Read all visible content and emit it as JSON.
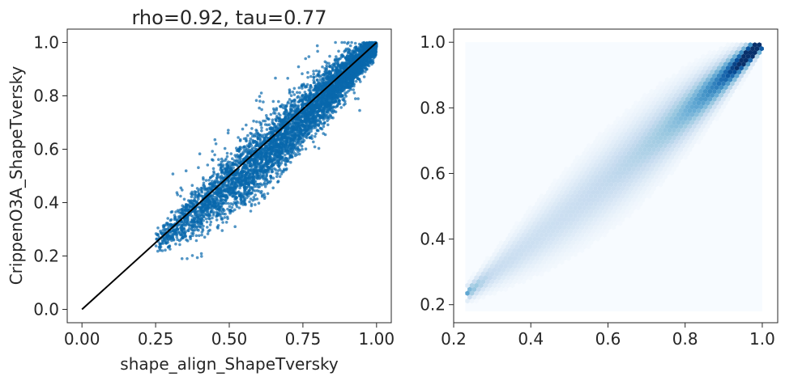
{
  "chart_data": [
    {
      "type": "scatter",
      "title": "rho=0.92, tau=0.77",
      "xlabel": "shape_align_ShapeTversky",
      "ylabel": "CrippenO3A_ShapeTversky",
      "xlim": [
        -0.05,
        1.05
      ],
      "ylim": [
        -0.05,
        1.05
      ],
      "xticks": [
        "0.00",
        "0.25",
        "0.50",
        "0.75",
        "1.00"
      ],
      "yticks": [
        "0.0",
        "0.2",
        "0.4",
        "0.6",
        "0.8",
        "1.0"
      ],
      "point_color": "#0868ac",
      "series": [
        {
          "points_summary": {
            "x_range": [
              0.25,
              1.0
            ],
            "y_range": [
              0.19,
              1.0
            ],
            "trend": "y ≈ x with spread up to ±0.15",
            "representative": [
              [
                0.27,
                0.22
              ],
              [
                0.3,
                0.27
              ],
              [
                0.35,
                0.33
              ],
              [
                0.4,
                0.36
              ],
              [
                0.45,
                0.44
              ],
              [
                0.5,
                0.47
              ],
              [
                0.55,
                0.52
              ],
              [
                0.6,
                0.56
              ],
              [
                0.65,
                0.6
              ],
              [
                0.7,
                0.65
              ],
              [
                0.75,
                0.7
              ],
              [
                0.8,
                0.75
              ],
              [
                0.85,
                0.8
              ],
              [
                0.9,
                0.86
              ],
              [
                0.95,
                0.93
              ],
              [
                1.0,
                1.0
              ]
            ]
          }
        }
      ],
      "reference_line": {
        "from": [
          0.0,
          0.0
        ],
        "to": [
          1.0,
          1.0
        ],
        "color": "#000000"
      }
    },
    {
      "type": "heatmap",
      "title": "",
      "xlabel": "",
      "ylabel": "",
      "xlim": [
        0.2,
        1.04
      ],
      "ylim": [
        0.145,
        1.04
      ],
      "xticks": [
        "0.2",
        "0.4",
        "0.6",
        "0.8",
        "1.0"
      ],
      "yticks": [
        "0.2",
        "0.4",
        "0.6",
        "0.8",
        "1.0"
      ],
      "colormap": "Blues",
      "colors": {
        "low": "#f7fbff",
        "mid": "#6baed6",
        "high": "#08306b"
      },
      "bin_extent": {
        "x": [
          0.23,
          1.0
        ],
        "y": [
          0.18,
          1.0
        ]
      },
      "density_ridge": "highest density along y = x, strongest between 0.6 and 0.95"
    }
  ]
}
